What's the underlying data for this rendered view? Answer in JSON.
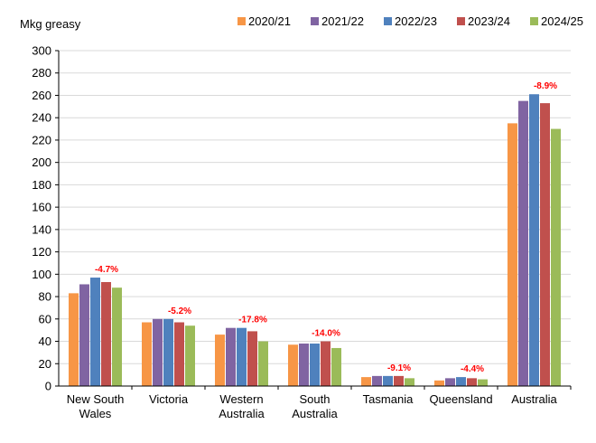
{
  "chart_data": {
    "type": "bar",
    "title": "",
    "ylabel": "Mkg greasy",
    "xlabel": "",
    "ylim": [
      0,
      300
    ],
    "ytick_step": 20,
    "grid": true,
    "legend_position": "top-right",
    "categories": [
      [
        "New South",
        "Wales"
      ],
      [
        "Victoria"
      ],
      [
        "Western",
        "Australia"
      ],
      [
        "South",
        "Australia"
      ],
      [
        "Tasmania"
      ],
      [
        "Queensland"
      ],
      [
        "Australia"
      ]
    ],
    "series": [
      {
        "name": "2020/21",
        "color": "#f79646",
        "values": [
          83,
          57,
          46,
          37,
          8,
          5,
          235
        ]
      },
      {
        "name": "2021/22",
        "color": "#8064a2",
        "values": [
          91,
          60,
          52,
          38,
          9,
          7,
          255
        ]
      },
      {
        "name": "2022/23",
        "color": "#4f81bd",
        "values": [
          97,
          60,
          52,
          38,
          9,
          8,
          261
        ]
      },
      {
        "name": "2023/24",
        "color": "#c0504d",
        "values": [
          93,
          57,
          49,
          40,
          9,
          7,
          253
        ]
      },
      {
        "name": "2024/25",
        "color": "#9bbb59",
        "values": [
          88,
          54,
          40,
          34,
          7,
          6,
          230
        ]
      }
    ],
    "annotations": [
      "-4.7%",
      "-5.2%",
      "-17.8%",
      "-14.0%",
      "-9.1%",
      "-4.4%",
      "-8.9%"
    ],
    "annotation_color": "#ff0000"
  }
}
